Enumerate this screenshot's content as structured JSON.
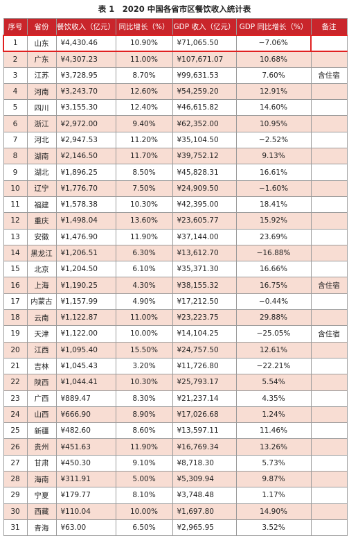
{
  "caption": "表 1　2020 中国各省市区餐饮收入统计表",
  "headers": [
    "序号",
    "省份",
    "餐饮收入（亿元）",
    "同比增长（%）",
    "GDP 收入（亿元）",
    "GDP 同比增长（%）",
    "备注"
  ],
  "rows": [
    {
      "no": "1",
      "province": "山东",
      "revenue": "¥4,430.46",
      "growth": "10.90%",
      "gdp": "¥71,065.50",
      "gdp_growth": "−7.06%",
      "note": ""
    },
    {
      "no": "2",
      "province": "广东",
      "revenue": "¥4,307.23",
      "growth": "11.00%",
      "gdp": "¥107,671.07",
      "gdp_growth": "10.68%",
      "note": ""
    },
    {
      "no": "3",
      "province": "江苏",
      "revenue": "¥3,728.95",
      "growth": "8.70%",
      "gdp": "¥99,631.53",
      "gdp_growth": "7.60%",
      "note": "含住宿"
    },
    {
      "no": "4",
      "province": "河南",
      "revenue": "¥3,243.70",
      "growth": "12.60%",
      "gdp": "¥54,259.20",
      "gdp_growth": "12.91%",
      "note": ""
    },
    {
      "no": "5",
      "province": "四川",
      "revenue": "¥3,155.30",
      "growth": "12.40%",
      "gdp": "¥46,615.82",
      "gdp_growth": "14.60%",
      "note": ""
    },
    {
      "no": "6",
      "province": "浙江",
      "revenue": "¥2,972.00",
      "growth": "9.40%",
      "gdp": "¥62,352.00",
      "gdp_growth": "10.95%",
      "note": ""
    },
    {
      "no": "7",
      "province": "河北",
      "revenue": "¥2,947.53",
      "growth": "11.20%",
      "gdp": "¥35,104.50",
      "gdp_growth": "−2.52%",
      "note": ""
    },
    {
      "no": "8",
      "province": "湖南",
      "revenue": "¥2,146.50",
      "growth": "11.70%",
      "gdp": "¥39,752.12",
      "gdp_growth": "9.13%",
      "note": ""
    },
    {
      "no": "9",
      "province": "湖北",
      "revenue": "¥1,896.25",
      "growth": "8.50%",
      "gdp": "¥45,828.31",
      "gdp_growth": "16.61%",
      "note": ""
    },
    {
      "no": "10",
      "province": "辽宁",
      "revenue": "¥1,776.70",
      "growth": "7.50%",
      "gdp": "¥24,909.50",
      "gdp_growth": "−1.60%",
      "note": ""
    },
    {
      "no": "11",
      "province": "福建",
      "revenue": "¥1,578.38",
      "growth": "10.30%",
      "gdp": "¥42,395.00",
      "gdp_growth": "18.41%",
      "note": ""
    },
    {
      "no": "12",
      "province": "重庆",
      "revenue": "¥1,498.04",
      "growth": "13.60%",
      "gdp": "¥23,605.77",
      "gdp_growth": "15.92%",
      "note": ""
    },
    {
      "no": "13",
      "province": "安徽",
      "revenue": "¥1,476.90",
      "growth": "11.90%",
      "gdp": "¥37,144.00",
      "gdp_growth": "23.69%",
      "note": ""
    },
    {
      "no": "14",
      "province": "黑龙江",
      "revenue": "¥1,206.51",
      "growth": "6.30%",
      "gdp": "¥13,612.70",
      "gdp_growth": "−16.88%",
      "note": ""
    },
    {
      "no": "15",
      "province": "北京",
      "revenue": "¥1,204.50",
      "growth": "6.10%",
      "gdp": "¥35,371.30",
      "gdp_growth": "16.66%",
      "note": ""
    },
    {
      "no": "16",
      "province": "上海",
      "revenue": "¥1,190.25",
      "growth": "4.30%",
      "gdp": "¥38,155.32",
      "gdp_growth": "16.75%",
      "note": "含住宿"
    },
    {
      "no": "17",
      "province": "内蒙古",
      "revenue": "¥1,157.99",
      "growth": "4.90%",
      "gdp": "¥17,212.50",
      "gdp_growth": "−0.44%",
      "note": ""
    },
    {
      "no": "18",
      "province": "云南",
      "revenue": "¥1,122.87",
      "growth": "11.00%",
      "gdp": "¥23,223.75",
      "gdp_growth": "29.88%",
      "note": ""
    },
    {
      "no": "19",
      "province": "天津",
      "revenue": "¥1,122.00",
      "growth": "10.00%",
      "gdp": "¥14,104.25",
      "gdp_growth": "−25.05%",
      "note": "含住宿"
    },
    {
      "no": "20",
      "province": "江西",
      "revenue": "¥1,095.40",
      "growth": "15.50%",
      "gdp": "¥24,757.50",
      "gdp_growth": "12.61%",
      "note": ""
    },
    {
      "no": "21",
      "province": "吉林",
      "revenue": "¥1,045.43",
      "growth": "3.20%",
      "gdp": "¥11,726.80",
      "gdp_growth": "−22.21%",
      "note": ""
    },
    {
      "no": "22",
      "province": "陕西",
      "revenue": "¥1,044.41",
      "growth": "10.30%",
      "gdp": "¥25,793.17",
      "gdp_growth": "5.54%",
      "note": ""
    },
    {
      "no": "23",
      "province": "广西",
      "revenue": "¥889.47",
      "growth": "8.30%",
      "gdp": "¥21,237.14",
      "gdp_growth": "4.35%",
      "note": ""
    },
    {
      "no": "24",
      "province": "山西",
      "revenue": "¥666.90",
      "growth": "8.90%",
      "gdp": "¥17,026.68",
      "gdp_growth": "1.24%",
      "note": ""
    },
    {
      "no": "25",
      "province": "新疆",
      "revenue": "¥482.60",
      "growth": "8.60%",
      "gdp": "¥13,597.11",
      "gdp_growth": "11.46%",
      "note": ""
    },
    {
      "no": "26",
      "province": "贵州",
      "revenue": "¥451.63",
      "growth": "11.90%",
      "gdp": "¥16,769.34",
      "gdp_growth": "13.26%",
      "note": ""
    },
    {
      "no": "27",
      "province": "甘肃",
      "revenue": "¥450.30",
      "growth": "9.10%",
      "gdp": "¥8,718.30",
      "gdp_growth": "5.73%",
      "note": ""
    },
    {
      "no": "28",
      "province": "海南",
      "revenue": "¥311.91",
      "growth": "5.00%",
      "gdp": "¥5,309.94",
      "gdp_growth": "9.87%",
      "note": ""
    },
    {
      "no": "29",
      "province": "宁夏",
      "revenue": "¥179.77",
      "growth": "8.10%",
      "gdp": "¥3,748.48",
      "gdp_growth": "1.17%",
      "note": ""
    },
    {
      "no": "30",
      "province": "西藏",
      "revenue": "¥110.04",
      "growth": "10.00%",
      "gdp": "¥1,697.80",
      "gdp_growth": "14.90%",
      "note": ""
    },
    {
      "no": "31",
      "province": "青海",
      "revenue": "¥63.00",
      "growth": "6.50%",
      "gdp": "¥2,965.95",
      "gdp_growth": "3.52%",
      "note": ""
    }
  ],
  "colors": {
    "header_bg": "#c9252b",
    "header_text": "#ffffff",
    "stripe": "#f8ddd3",
    "highlight_border": "#e02020"
  }
}
